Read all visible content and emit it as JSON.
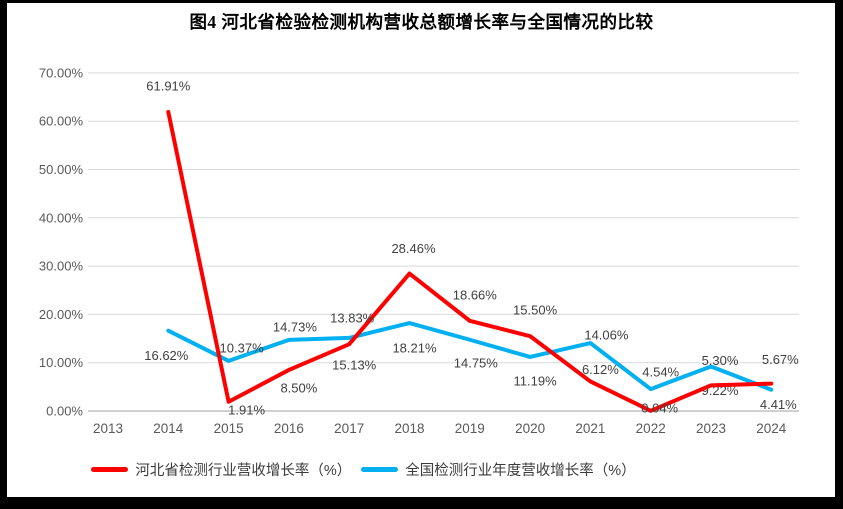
{
  "window": {
    "frame_color": "#000000",
    "canvas_color": "#ffffff"
  },
  "title": "图4 河北省检验检测机构营收总额增长率与全国情况的比较",
  "chart_data": {
    "type": "line",
    "title": "图4 河北省检验检测机构营收总额增长率与全国情况的比较",
    "x": [
      "2013",
      "2014",
      "2015",
      "2016",
      "2017",
      "2018",
      "2019",
      "2020",
      "2021",
      "2022",
      "2023",
      "2024"
    ],
    "y_ticks": [
      "0.00%",
      "10.00%",
      "20.00%",
      "30.00%",
      "40.00%",
      "50.00%",
      "60.00%",
      "70.00%"
    ],
    "ylim": [
      0,
      70
    ],
    "y_tick_step": 10,
    "grid": true,
    "legend_position": "bottom",
    "axis_color": "#BFBFBF",
    "grid_color": "#D9D9D9",
    "tick_label_color": "#595959",
    "data_label_color": "#404040",
    "series": [
      {
        "id": "hebei",
        "name": "河北省检测行业营收增长率（%）",
        "color": "#FF0000",
        "values": [
          null,
          61.91,
          1.91,
          8.5,
          13.83,
          28.46,
          18.66,
          15.5,
          6.12,
          0.04,
          5.3,
          5.67
        ],
        "labels": [
          "",
          "61.91%",
          "1.91%",
          "8.50%",
          "13.83%",
          "28.46%",
          "18.66%",
          "15.50%",
          "6.12%",
          "0.04%",
          "5.30%",
          "5.67%"
        ],
        "label_offsets": [
          [
            0,
            0
          ],
          [
            0,
            -26
          ],
          [
            18,
            8
          ],
          [
            10,
            18
          ],
          [
            3,
            -26
          ],
          [
            4,
            -25
          ],
          [
            5,
            -26
          ],
          [
            5,
            -26
          ],
          [
            10,
            -12
          ],
          [
            9,
            -3
          ],
          [
            9,
            -25
          ],
          [
            9,
            -24
          ]
        ]
      },
      {
        "id": "national",
        "name": "全国检测行业年度营收增长率（%）",
        "color": "#00B0F0",
        "values": [
          null,
          16.62,
          10.37,
          14.73,
          15.13,
          18.21,
          14.75,
          11.19,
          14.06,
          4.54,
          9.22,
          4.41
        ],
        "labels": [
          "",
          "16.62%",
          "10.37%",
          "14.73%",
          "15.13%",
          "18.21%",
          "14.75%",
          "11.19%",
          "14.06%",
          "4.54%",
          "9.22%",
          "4.41%"
        ],
        "label_offsets": [
          [
            0,
            0
          ],
          [
            -2,
            25
          ],
          [
            13,
            -13
          ],
          [
            6,
            -13
          ],
          [
            5,
            27
          ],
          [
            5,
            25
          ],
          [
            6,
            23
          ],
          [
            5,
            24
          ],
          [
            16,
            -8
          ],
          [
            10,
            -17
          ],
          [
            9,
            24
          ],
          [
            7,
            15
          ]
        ]
      }
    ]
  }
}
